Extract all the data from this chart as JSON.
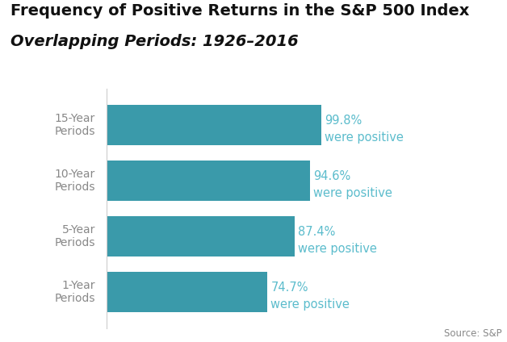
{
  "title_line1": "Frequency of Positive Returns in the S&P 500 Index",
  "title_line2": "Overlapping Periods: 1926–2016",
  "categories": [
    "1-Year\nPeriods",
    "5-Year\nPeriods",
    "10-Year\nPeriods",
    "15-Year\nPeriods"
  ],
  "values": [
    74.7,
    87.4,
    94.6,
    99.8
  ],
  "pct_labels": [
    "74.7%",
    "87.4%",
    "94.6%",
    "99.8%"
  ],
  "sub_labels": [
    "were positive",
    "were positive",
    "were positive",
    "were positive"
  ],
  "bar_color": "#3a9aaa",
  "label_color": "#5bbccc",
  "ytick_color": "#888888",
  "title_color": "#111111",
  "background_color": "#ffffff",
  "source_text": "Source: S&P",
  "xlim": [
    0,
    120
  ],
  "bar_height": 0.72,
  "title_fontsize": 14,
  "subtitle_fontsize": 14,
  "label_fontsize": 10.5,
  "ytick_fontsize": 10,
  "source_fontsize": 8.5,
  "spine_color": "#cccccc"
}
